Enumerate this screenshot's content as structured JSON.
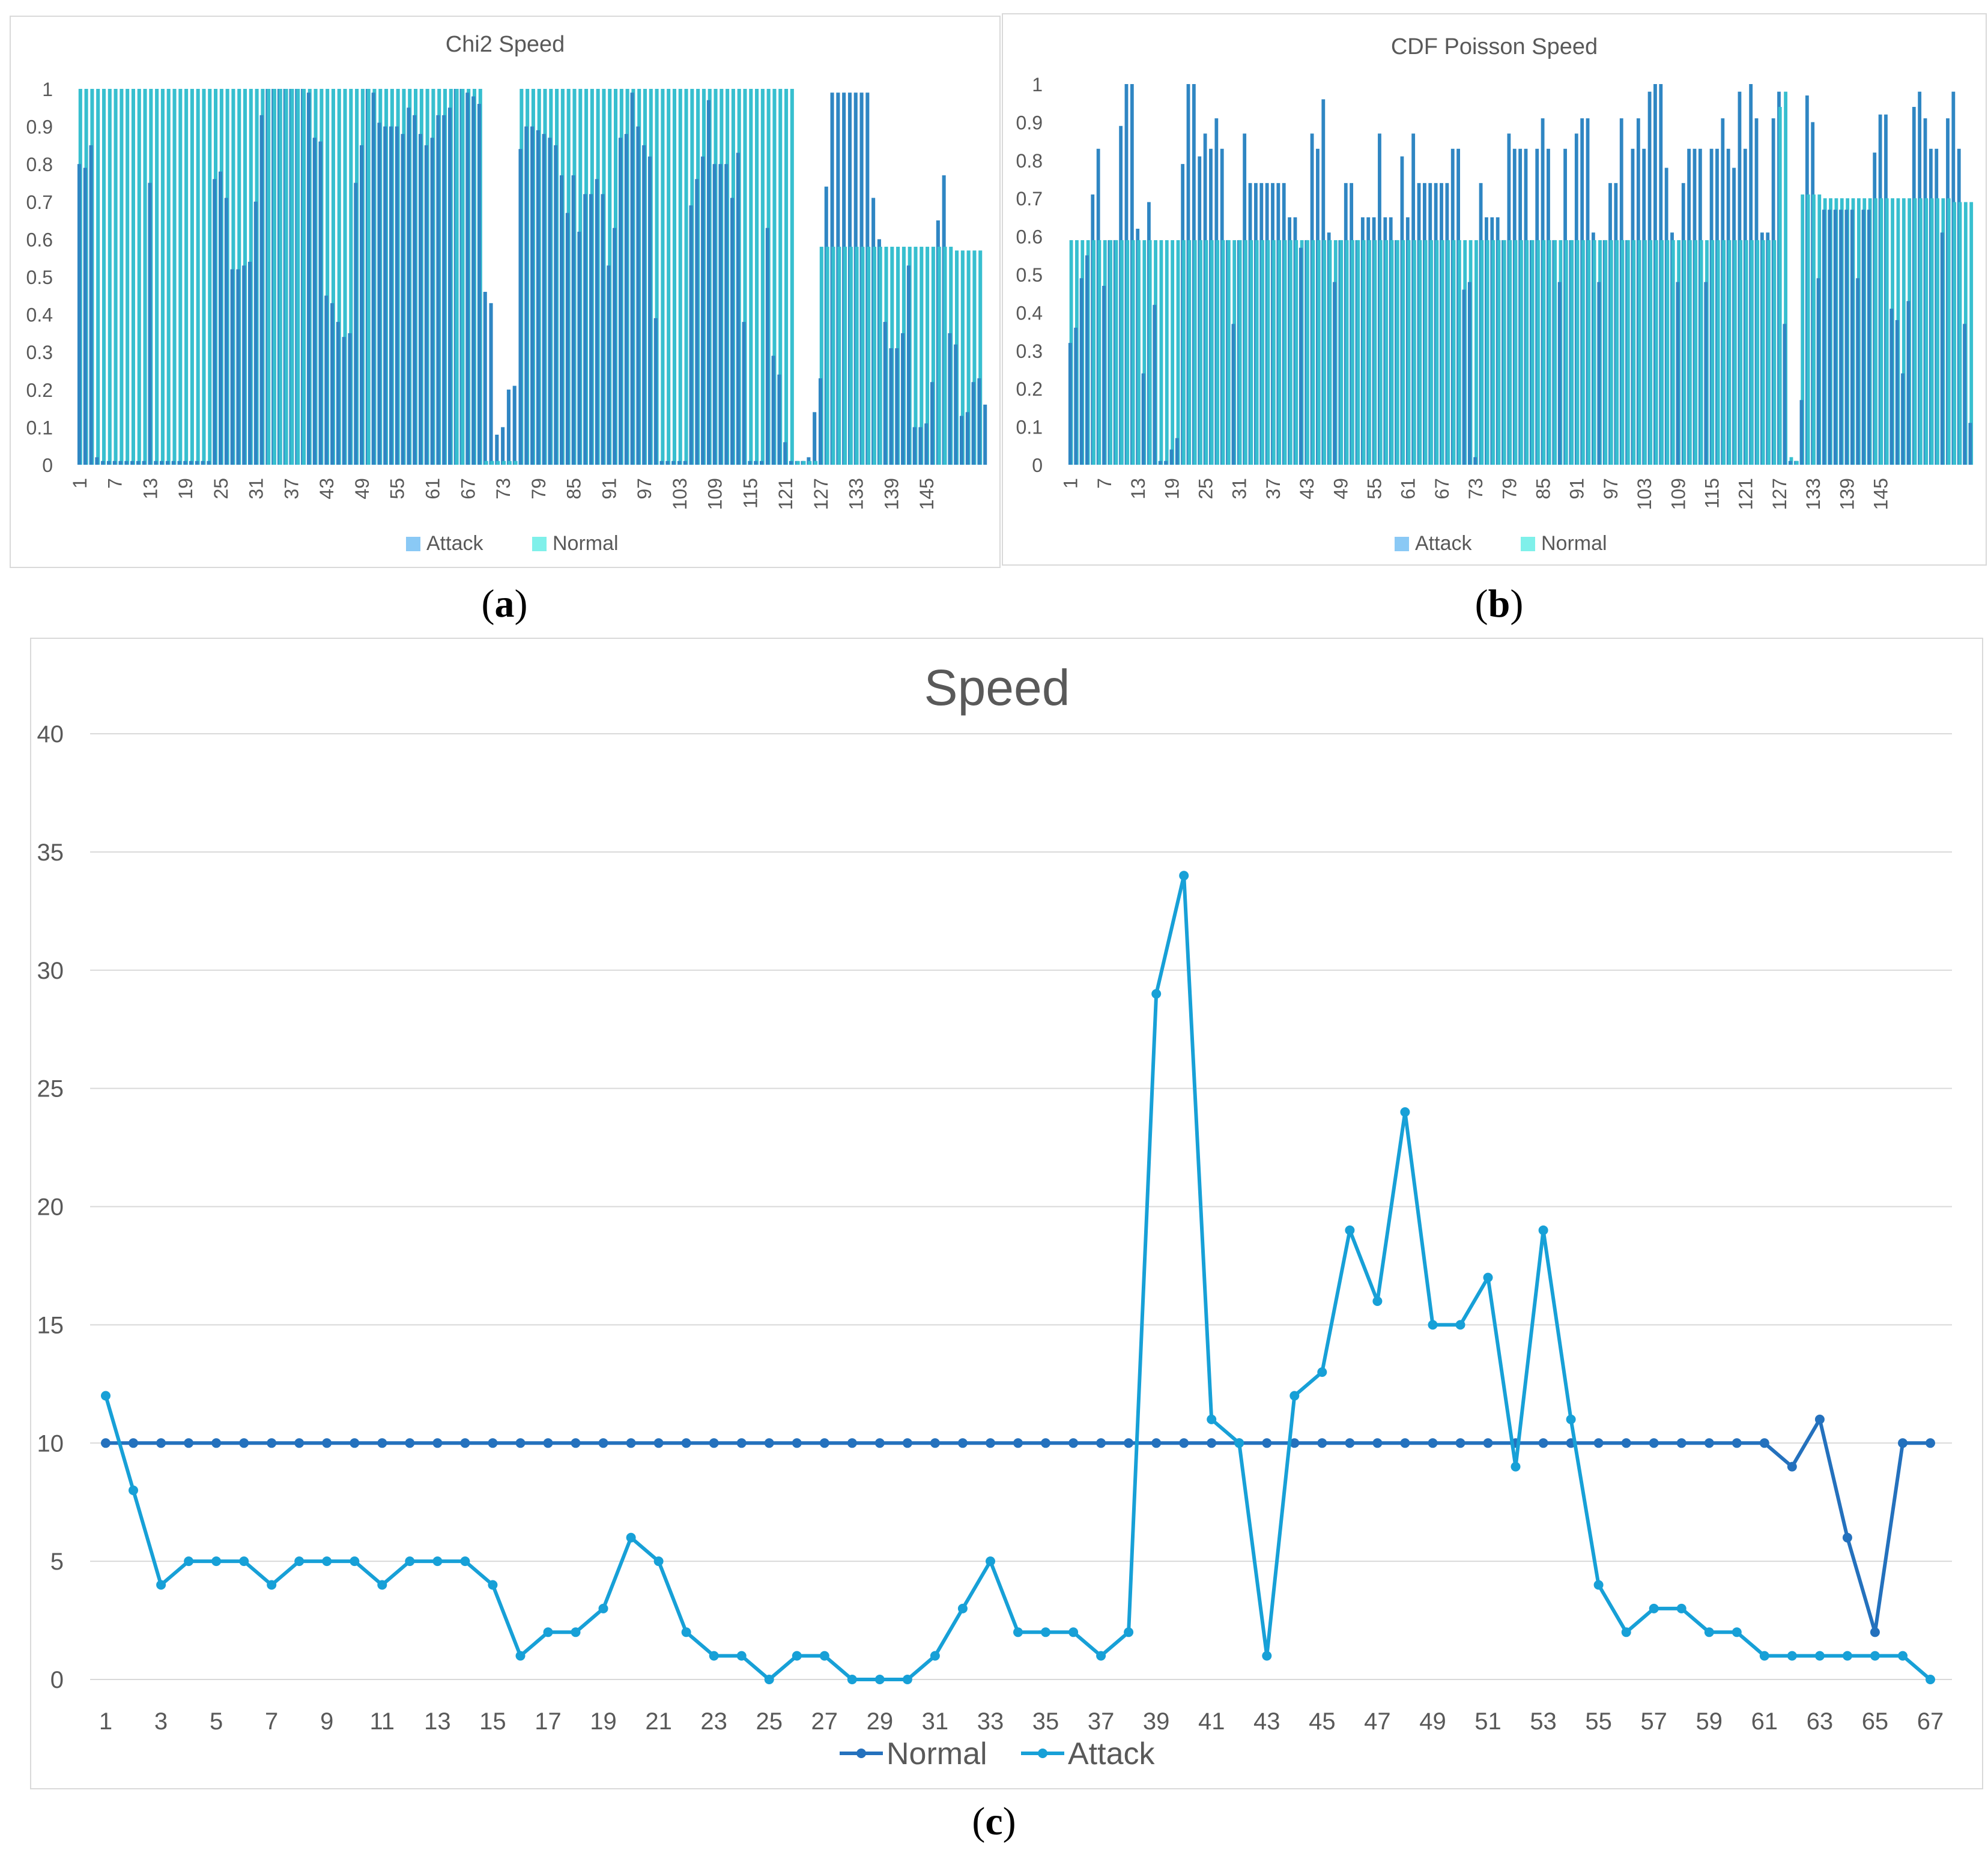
{
  "captions": {
    "a": "a",
    "b": "b",
    "c": "c"
  },
  "colors": {
    "attack": "#2f86c3",
    "normal": "#37bfcf",
    "legend_attack": "#8ac9f5",
    "legend_normal": "#7ff0ea",
    "normal_line": "#2471bd",
    "attack_line": "#17a0d7"
  },
  "chart_data": [
    {
      "id": "a",
      "type": "bar",
      "title": "Chi2 Speed",
      "legend": [
        "Attack",
        "Normal"
      ],
      "ylim": [
        0,
        1
      ],
      "yticks": [
        "0",
        "0.1",
        "0.2",
        "0.3",
        "0.4",
        "0.5",
        "0.6",
        "0.7",
        "0.8",
        "0.9",
        "1"
      ],
      "xticks": [
        "1",
        "7",
        "13",
        "19",
        "25",
        "31",
        "37",
        "43",
        "49",
        "55",
        "61",
        "67",
        "73",
        "79",
        "85",
        "91",
        "97",
        "103",
        "109",
        "115",
        "121",
        "127",
        "133",
        "139",
        "145"
      ],
      "series": [
        {
          "name": "Attack",
          "values": [
            0.8,
            0.79,
            0.85,
            0.02,
            0.01,
            0.01,
            0.01,
            0.01,
            0.01,
            0.01,
            0.01,
            0.01,
            0.75,
            0.01,
            0.01,
            0.01,
            0.01,
            0.01,
            0.01,
            0.01,
            0.01,
            0.01,
            0.01,
            0.76,
            0.78,
            0.71,
            0.52,
            0.52,
            0.53,
            0.54,
            0.7,
            0.93,
            1,
            1,
            1,
            1,
            1,
            1,
            1,
            0.99,
            0.87,
            0.86,
            0.45,
            0.43,
            0.38,
            0.34,
            0.35,
            0.75,
            0.85,
            1,
            0.99,
            0.91,
            0.9,
            0.9,
            0.9,
            0.88,
            0.95,
            0.93,
            0.88,
            0.85,
            0.87,
            0.93,
            0.93,
            0.95,
            1,
            1,
            0.99,
            0.98,
            0.96,
            0.46,
            0.43,
            0.08,
            0.1,
            0.2,
            0.21,
            0.84,
            0.9,
            0.9,
            0.89,
            0.88,
            0.87,
            0.85,
            0.77,
            0.67,
            0.77,
            0.62,
            0.72,
            0.72,
            0.76,
            0.72,
            0.53,
            0.63,
            0.87,
            0.88,
            0.99,
            0.9,
            0.85,
            0.82,
            0.39,
            0.01,
            0.01,
            0.01,
            0.01,
            0.01,
            0.69,
            0.76,
            0.82,
            0.97,
            0.8,
            0.8,
            0.8,
            0.71,
            0.83,
            0.38,
            0.01,
            0.01,
            0.01,
            0.63,
            0.29,
            0.24,
            0.06,
            0.01,
            0.01,
            0.01,
            0.02,
            0.14,
            0.23,
            0.74,
            0.99,
            0.99,
            0.99,
            0.99,
            0.99,
            0.99,
            0.99,
            0.71,
            0.6,
            0.38,
            0.31,
            0.31,
            0.35,
            0.53,
            0.1,
            0.1,
            0.11,
            0.22,
            0.65,
            0.77,
            0.35,
            0.32,
            0.13,
            0.14,
            0.22,
            0.23,
            0.16
          ]
        },
        {
          "name": "Normal",
          "values": [
            1,
            1,
            1,
            1,
            1,
            1,
            1,
            1,
            1,
            1,
            1,
            1,
            1,
            1,
            1,
            1,
            1,
            1,
            1,
            1,
            1,
            1,
            1,
            1,
            1,
            1,
            1,
            1,
            1,
            1,
            1,
            1,
            1,
            1,
            1,
            1,
            1,
            1,
            1,
            1,
            1,
            1,
            1,
            1,
            1,
            1,
            1,
            1,
            1,
            1,
            1,
            1,
            1,
            1,
            1,
            1,
            1,
            1,
            1,
            1,
            1,
            1,
            1,
            1,
            1,
            1,
            1,
            1,
            1,
            0.01,
            0.01,
            0.01,
            0.01,
            0.01,
            0.01,
            1,
            1,
            1,
            1,
            1,
            1,
            1,
            1,
            1,
            1,
            1,
            1,
            1,
            1,
            1,
            1,
            1,
            1,
            1,
            1,
            1,
            1,
            1,
            1,
            1,
            1,
            1,
            1,
            1,
            1,
            1,
            1,
            1,
            1,
            1,
            1,
            1,
            1,
            1,
            1,
            1,
            1,
            1,
            1,
            1,
            1,
            1,
            0.01,
            0.01,
            0.01,
            0.01,
            0.58,
            0.58,
            0.58,
            0.58,
            0.58,
            0.58,
            0.58,
            0.58,
            0.58,
            0.58,
            0.58,
            0.58,
            0.58,
            0.58,
            0.58,
            0.58,
            0.58,
            0.58,
            0.58,
            0.58,
            0.58,
            0.58,
            0.58,
            0.57,
            0.57,
            0.57,
            0.57,
            0.57
          ]
        }
      ]
    },
    {
      "id": "b",
      "type": "bar",
      "title": "CDF Poisson  Speed",
      "legend": [
        "Attack",
        "Normal"
      ],
      "ylim": [
        0,
        1
      ],
      "yticks": [
        "0",
        "0.1",
        "0.2",
        "0.3",
        "0.4",
        "0.5",
        "0.6",
        "0.7",
        "0.8",
        "0.9",
        "1"
      ],
      "xticks": [
        "1",
        "7",
        "13",
        "19",
        "25",
        "31",
        "37",
        "43",
        "49",
        "55",
        "61",
        "67",
        "73",
        "79",
        "85",
        "91",
        "97",
        "103",
        "109",
        "115",
        "121",
        "127",
        "133",
        "139",
        "145"
      ],
      "series": [
        {
          "name": "Attack",
          "values": [
            0.32,
            0.36,
            0.49,
            0.55,
            0.71,
            0.83,
            0.47,
            0.59,
            0.59,
            0.89,
            1,
            1,
            0.62,
            0.24,
            0.69,
            0.42,
            0.01,
            0.01,
            0.04,
            0.07,
            0.79,
            1,
            1,
            0.81,
            0.87,
            0.83,
            0.91,
            0.83,
            0.59,
            0.37,
            0.59,
            0.87,
            0.74,
            0.74,
            0.74,
            0.74,
            0.74,
            0.74,
            0.74,
            0.65,
            0.65,
            0.57,
            0.59,
            0.87,
            0.83,
            0.96,
            0.61,
            0.48,
            0.59,
            0.74,
            0.74,
            0.59,
            0.65,
            0.65,
            0.65,
            0.87,
            0.65,
            0.65,
            0.59,
            0.81,
            0.65,
            0.87,
            0.74,
            0.74,
            0.74,
            0.74,
            0.74,
            0.74,
            0.83,
            0.83,
            0.46,
            0.48,
            0.02,
            0.74,
            0.65,
            0.65,
            0.65,
            0.59,
            0.87,
            0.83,
            0.83,
            0.83,
            0.59,
            0.83,
            0.91,
            0.83,
            0.59,
            0.48,
            0.83,
            0.59,
            0.87,
            0.91,
            0.91,
            0.61,
            0.48,
            0.59,
            0.74,
            0.74,
            0.91,
            0.59,
            0.83,
            0.91,
            0.83,
            0.98,
            1,
            1,
            0.78,
            0.61,
            0.48,
            0.74,
            0.83,
            0.83,
            0.83,
            0.48,
            0.83,
            0.83,
            0.91,
            0.83,
            0.78,
            0.98,
            0.83,
            1,
            0.91,
            0.61,
            0.61,
            0.91,
            0.98,
            0.37,
            0.01,
            0.01,
            0.17,
            0.97,
            0.9,
            0.49,
            0.67,
            0.67,
            0.67,
            0.67,
            0.67,
            0.67,
            0.49,
            0.67,
            0.67,
            0.82,
            0.92,
            0.92,
            0.41,
            0.38,
            0.24,
            0.43,
            0.94,
            0.98,
            0.91,
            0.83,
            0.83,
            0.61,
            0.91,
            0.98,
            0.83,
            0.37,
            0.11
          ]
        },
        {
          "name": "Normal",
          "values": [
            0.59,
            0.59,
            0.59,
            0.59,
            0.59,
            0.59,
            0.59,
            0.59,
            0.59,
            0.59,
            0.59,
            0.59,
            0.59,
            0.59,
            0.59,
            0.59,
            0.59,
            0.59,
            0.59,
            0.59,
            0.59,
            0.59,
            0.59,
            0.59,
            0.59,
            0.59,
            0.59,
            0.59,
            0.59,
            0.59,
            0.59,
            0.59,
            0.59,
            0.59,
            0.59,
            0.59,
            0.59,
            0.59,
            0.59,
            0.59,
            0.59,
            0.59,
            0.59,
            0.59,
            0.59,
            0.59,
            0.59,
            0.59,
            0.59,
            0.59,
            0.59,
            0.59,
            0.59,
            0.59,
            0.59,
            0.59,
            0.59,
            0.59,
            0.59,
            0.59,
            0.59,
            0.59,
            0.59,
            0.59,
            0.59,
            0.59,
            0.59,
            0.59,
            0.59,
            0.59,
            0.59,
            0.59,
            0.59,
            0.59,
            0.59,
            0.59,
            0.59,
            0.59,
            0.59,
            0.59,
            0.59,
            0.59,
            0.59,
            0.59,
            0.59,
            0.59,
            0.59,
            0.59,
            0.59,
            0.59,
            0.59,
            0.59,
            0.59,
            0.59,
            0.59,
            0.59,
            0.59,
            0.59,
            0.59,
            0.59,
            0.59,
            0.59,
            0.59,
            0.59,
            0.59,
            0.59,
            0.59,
            0.59,
            0.59,
            0.59,
            0.59,
            0.59,
            0.59,
            0.59,
            0.59,
            0.59,
            0.59,
            0.59,
            0.59,
            0.59,
            0.59,
            0.59,
            0.59,
            0.59,
            0.59,
            0.59,
            0.94,
            0.98,
            0.02,
            0.01,
            0.71,
            0.71,
            0.71,
            0.71,
            0.7,
            0.7,
            0.7,
            0.7,
            0.7,
            0.7,
            0.7,
            0.7,
            0.7,
            0.7,
            0.7,
            0.7,
            0.7,
            0.7,
            0.7,
            0.7,
            0.7,
            0.7,
            0.7,
            0.7,
            0.7,
            0.7,
            0.7,
            0.69,
            0.69,
            0.69,
            0.69,
            0.69
          ]
        }
      ]
    },
    {
      "id": "c",
      "type": "line",
      "title": "Speed",
      "legend": [
        "Normal",
        "Attack"
      ],
      "ylim": [
        0,
        40
      ],
      "yticks": [
        "0",
        "5",
        "10",
        "15",
        "20",
        "25",
        "30",
        "35",
        "40"
      ],
      "xticks": [
        "1",
        "3",
        "5",
        "7",
        "9",
        "11",
        "13",
        "15",
        "17",
        "19",
        "21",
        "23",
        "25",
        "27",
        "29",
        "31",
        "33",
        "35",
        "37",
        "39",
        "41",
        "43",
        "45",
        "47",
        "49",
        "51",
        "53",
        "55",
        "57",
        "59",
        "61",
        "63",
        "65",
        "67"
      ],
      "series": [
        {
          "name": "Normal",
          "values": [
            10,
            10,
            10,
            10,
            10,
            10,
            10,
            10,
            10,
            10,
            10,
            10,
            10,
            10,
            10,
            10,
            10,
            10,
            10,
            10,
            10,
            10,
            10,
            10,
            10,
            10,
            10,
            10,
            10,
            10,
            10,
            10,
            10,
            10,
            10,
            10,
            10,
            10,
            10,
            10,
            10,
            10,
            10,
            10,
            10,
            10,
            10,
            10,
            10,
            10,
            10,
            10,
            10,
            10,
            10,
            10,
            10,
            10,
            10,
            10,
            10,
            9,
            11,
            6,
            2,
            10,
            10
          ]
        },
        {
          "name": "Attack",
          "values": [
            12,
            8,
            4,
            5,
            5,
            5,
            4,
            5,
            5,
            5,
            4,
            5,
            5,
            5,
            4,
            1,
            2,
            2,
            3,
            6,
            5,
            2,
            1,
            1,
            0,
            1,
            1,
            0,
            0,
            0,
            1,
            3,
            5,
            2,
            2,
            2,
            1,
            2,
            29,
            34,
            11,
            10,
            1,
            12,
            13,
            19,
            16,
            24,
            15,
            15,
            17,
            9,
            19,
            11,
            4,
            2,
            3,
            3,
            2,
            2,
            1,
            1,
            1,
            1,
            1,
            1,
            0
          ]
        }
      ]
    }
  ]
}
